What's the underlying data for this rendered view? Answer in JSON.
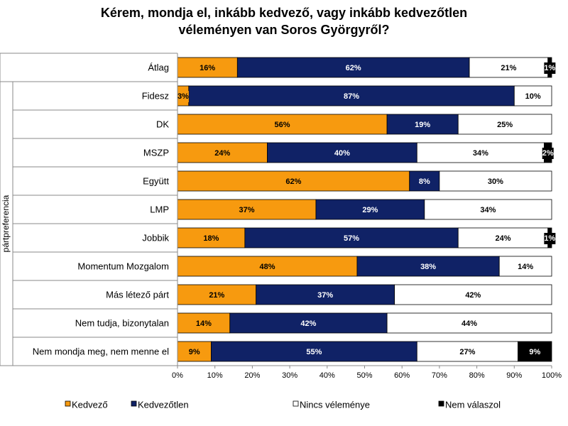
{
  "chart_data": {
    "type": "bar",
    "orientation": "horizontal",
    "stacked": "percent",
    "title": "Kérem, mondja el, inkább kedvező, vagy inkább kedvezőtlen véleményen van Soros Györgyről?",
    "title_lines": [
      "Kérem, mondja el, inkább kedvező, vagy inkább kedvezőtlen",
      "véleményen van Soros Györgyről?"
    ],
    "group_label": "pártpreferencia",
    "categories": [
      "Átlag",
      "Fidesz",
      "DK",
      "MSZP",
      "Együtt",
      "LMP",
      "Jobbik",
      "Momentum Mozgalom",
      "Más létező párt",
      "Nem tudja, bizonytalan",
      "Nem mondja meg, nem menne el"
    ],
    "series": [
      {
        "name": "Kedvező",
        "color": "#F79A0F",
        "text_color": "#000000",
        "values": [
          16,
          3,
          56,
          24,
          62,
          37,
          18,
          48,
          21,
          14,
          9
        ]
      },
      {
        "name": "Kedvezőtlen",
        "color": "#102266",
        "text_color": "#FFFFFF",
        "values": [
          62,
          87,
          19,
          40,
          8,
          29,
          57,
          38,
          37,
          42,
          55
        ]
      },
      {
        "name": "Nincs véleménye",
        "color": "#FFFFFF",
        "text_color": "#000000",
        "values": [
          21,
          10,
          25,
          34,
          30,
          34,
          24,
          14,
          42,
          44,
          27
        ]
      },
      {
        "name": "Nem válaszol",
        "color": "#000000",
        "text_color": "#FFFFFF",
        "values": [
          1,
          0,
          0,
          2,
          0,
          0,
          1,
          0,
          0,
          0,
          9
        ]
      }
    ],
    "x_ticks": [
      "0%",
      "10%",
      "20%",
      "30%",
      "40%",
      "50%",
      "60%",
      "70%",
      "80%",
      "90%",
      "100%"
    ],
    "xlim": [
      0,
      100
    ],
    "legend_position": "bottom",
    "grid": false
  }
}
